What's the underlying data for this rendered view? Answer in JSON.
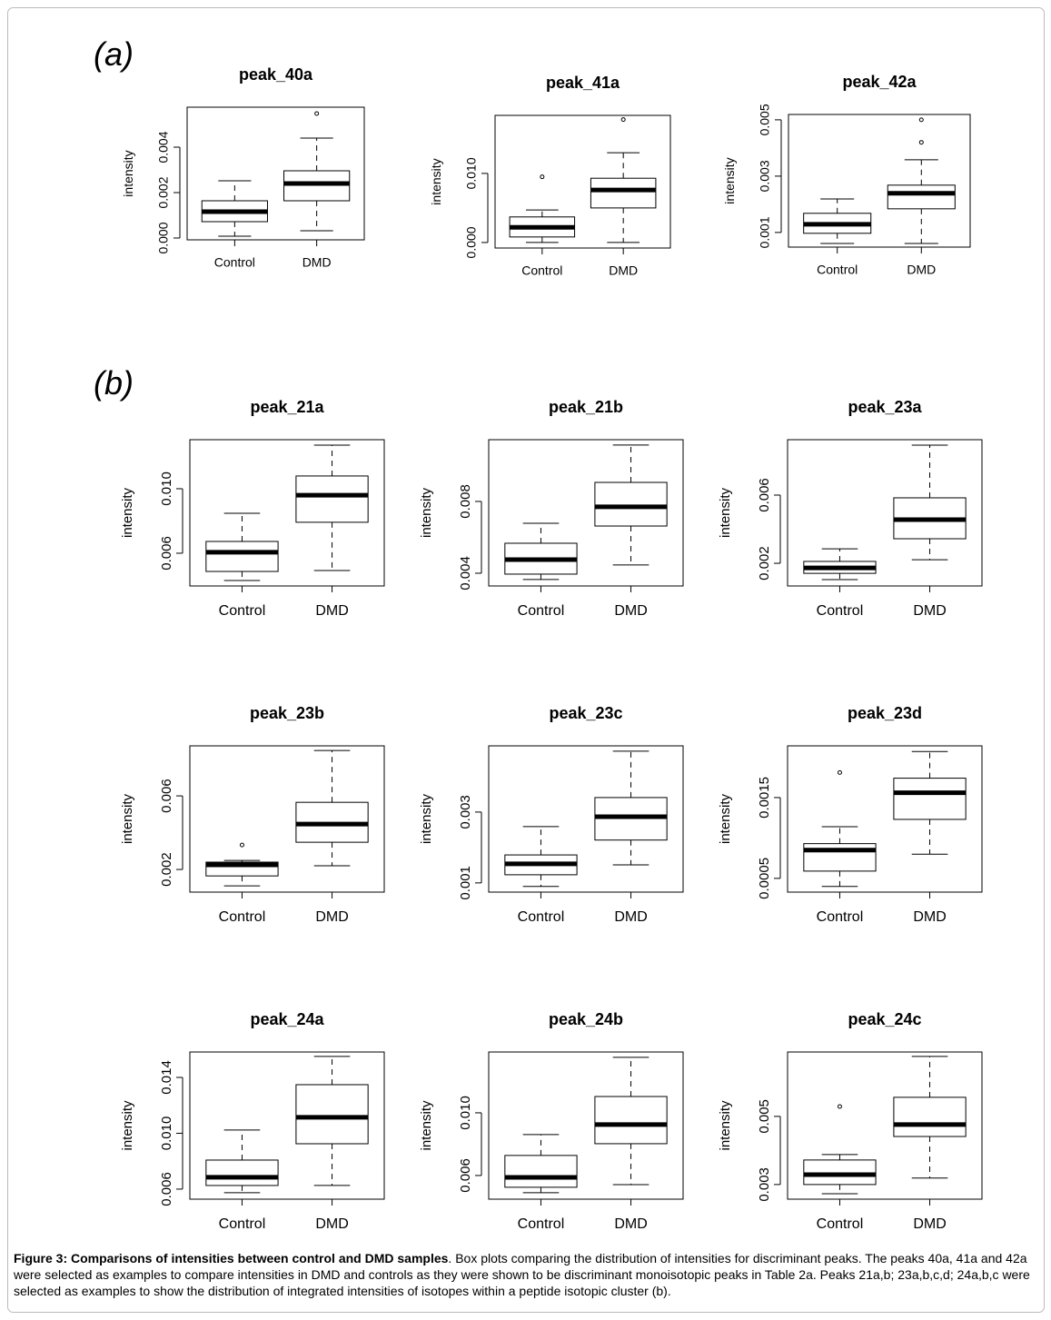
{
  "panel_labels": [
    "(a)",
    "(b)"
  ],
  "chart_data": [
    {
      "type": "box",
      "title": "peak_40a",
      "y_label": "intensity",
      "categories": [
        "Control",
        "DMD"
      ],
      "ylim": [
        -8e-05,
        0.00576
      ],
      "yticks": [
        {
          "value": 0,
          "label": "0.000"
        },
        0.002,
        0.004
      ],
      "boxes": [
        {
          "low": 8e-05,
          "q1": 0.00072,
          "median": 0.00116,
          "q3": 0.00164,
          "high": 0.00252,
          "outliers": []
        },
        {
          "low": 0.00032,
          "q1": 0.00164,
          "median": 0.0024,
          "q3": 0.00296,
          "high": 0.0044,
          "outliers": [
            0.00548
          ]
        }
      ]
    },
    {
      "type": "box",
      "title": "peak_41a",
      "y_label": "intensity",
      "categories": [
        "Control",
        "DMD"
      ],
      "ylim": [
        -0.0008,
        0.0184
      ],
      "yticks": [
        {
          "value": 0,
          "label": "0.000"
        },
        {
          "value": 0.01,
          "label": "0.010"
        }
      ],
      "boxes": [
        {
          "low": 0,
          "q1": 0.0008,
          "median": 0.0022,
          "q3": 0.0037,
          "high": 0.0047,
          "outliers": [
            0.0095
          ]
        },
        {
          "low": 0,
          "q1": 0.005,
          "median": 0.0076,
          "q3": 0.0093,
          "high": 0.013,
          "outliers": [
            0.0178
          ]
        }
      ]
    },
    {
      "type": "box",
      "title": "peak_42a",
      "y_label": "intensity",
      "categories": [
        "Control",
        "DMD"
      ],
      "ylim": [
        0.00048,
        0.00519
      ],
      "yticks": [
        0.001,
        0.003,
        0.005
      ],
      "boxes": [
        {
          "low": 0.00061,
          "q1": 0.00097,
          "median": 0.00129,
          "q3": 0.00168,
          "high": 0.00219,
          "outliers": []
        },
        {
          "low": 0.00061,
          "q1": 0.00184,
          "median": 0.00239,
          "q3": 0.00268,
          "high": 0.00358,
          "outliers": [
            0.0042,
            0.005
          ]
        }
      ]
    },
    {
      "type": "box",
      "title": "peak_21a",
      "y_label": "intensity",
      "categories": [
        "Control",
        "DMD"
      ],
      "ylim": [
        0.00397,
        0.01304
      ],
      "yticks": [
        0.006,
        {
          "value": 0.01,
          "label": "0.010"
        }
      ],
      "boxes": [
        {
          "low": 0.00431,
          "q1": 0.00487,
          "median": 0.00606,
          "q3": 0.00673,
          "high": 0.00848,
          "outliers": []
        },
        {
          "low": 0.00493,
          "q1": 0.00792,
          "median": 0.0096,
          "q3": 0.01079,
          "high": 0.0127,
          "outliers": []
        }
      ]
    },
    {
      "type": "box",
      "title": "peak_21b",
      "y_label": "intensity",
      "categories": [
        "Control",
        "DMD"
      ],
      "ylim": [
        0.00329,
        0.01144
      ],
      "yticks": [
        0.004,
        0.008
      ],
      "boxes": [
        {
          "low": 0.00365,
          "q1": 0.00395,
          "median": 0.00476,
          "q3": 0.00567,
          "high": 0.00678,
          "outliers": []
        },
        {
          "low": 0.00446,
          "q1": 0.00663,
          "median": 0.0077,
          "q3": 0.00906,
          "high": 0.01114,
          "outliers": []
        }
      ]
    },
    {
      "type": "box",
      "title": "peak_23a",
      "y_label": "intensity",
      "categories": [
        "Control",
        "DMD"
      ],
      "ylim": [
        0.00067,
        0.00925
      ],
      "yticks": [
        0.002,
        0.006
      ],
      "boxes": [
        {
          "low": 0.00104,
          "q1": 0.00141,
          "median": 0.00173,
          "q3": 0.00211,
          "high": 0.00285,
          "outliers": []
        },
        {
          "low": 0.00221,
          "q1": 0.00344,
          "median": 0.00456,
          "q3": 0.00584,
          "high": 0.00893,
          "outliers": []
        }
      ]
    },
    {
      "type": "box",
      "title": "peak_23b",
      "y_label": "intensity",
      "categories": [
        "Control",
        "DMD"
      ],
      "ylim": [
        0.00077,
        0.00872
      ],
      "yticks": [
        0.002,
        0.006
      ],
      "boxes": [
        {
          "low": 0.00111,
          "q1": 0.00165,
          "median": 0.00225,
          "q3": 0.0024,
          "high": 0.00249,
          "outliers": [
            0.00333
          ]
        },
        {
          "low": 0.0022,
          "q1": 0.00348,
          "median": 0.00447,
          "q3": 0.00565,
          "high": 0.00847,
          "outliers": []
        }
      ]
    },
    {
      "type": "box",
      "title": "peak_23c",
      "y_label": "intensity",
      "categories": [
        "Control",
        "DMD"
      ],
      "ylim": [
        0.00074,
        0.00487
      ],
      "yticks": [
        0.001,
        0.003
      ],
      "boxes": [
        {
          "low": 0.0009,
          "q1": 0.00123,
          "median": 0.00154,
          "q3": 0.00179,
          "high": 0.00259,
          "outliers": []
        },
        {
          "low": 0.00151,
          "q1": 0.00221,
          "median": 0.00287,
          "q3": 0.00341,
          "high": 0.00472,
          "outliers": []
        }
      ]
    },
    {
      "type": "box",
      "title": "peak_23d",
      "y_label": "intensity",
      "categories": [
        "Control",
        "DMD"
      ],
      "ylim": [
        0.00033,
        0.00214
      ],
      "yticks": [
        0.0005,
        0.0015
      ],
      "boxes": [
        {
          "low": 0.0004,
          "q1": 0.00059,
          "median": 0.00085,
          "q3": 0.00093,
          "high": 0.00114,
          "outliers": [
            0.00181
          ]
        },
        {
          "low": 0.0008,
          "q1": 0.00123,
          "median": 0.00156,
          "q3": 0.00174,
          "high": 0.00207,
          "outliers": []
        }
      ]
    },
    {
      "type": "box",
      "title": "peak_24a",
      "y_label": "intensity",
      "categories": [
        "Control",
        "DMD"
      ],
      "ylim": [
        0.00528,
        0.01582
      ],
      "yticks": [
        0.006,
        {
          "value": 0.01,
          "label": "0.010"
        },
        0.014
      ],
      "boxes": [
        {
          "low": 0.00574,
          "q1": 0.00626,
          "median": 0.00685,
          "q3": 0.00808,
          "high": 0.01023,
          "outliers": []
        },
        {
          "low": 0.00626,
          "q1": 0.00925,
          "median": 0.01114,
          "q3": 0.01348,
          "high": 0.0155,
          "outliers": []
        }
      ]
    },
    {
      "type": "box",
      "title": "peak_24b",
      "y_label": "intensity",
      "categories": [
        "Control",
        "DMD"
      ],
      "ylim": [
        0.00449,
        0.01388
      ],
      "yticks": [
        0.006,
        {
          "value": 0.01,
          "label": "0.010"
        }
      ],
      "boxes": [
        {
          "low": 0.0049,
          "q1": 0.00525,
          "median": 0.00588,
          "q3": 0.00728,
          "high": 0.00861,
          "outliers": []
        },
        {
          "low": 0.00542,
          "q1": 0.00803,
          "median": 0.00925,
          "q3": 0.01104,
          "high": 0.01354,
          "outliers": []
        }
      ]
    },
    {
      "type": "box",
      "title": "peak_24c",
      "y_label": "intensity",
      "categories": [
        "Control",
        "DMD"
      ],
      "ylim": [
        0.00257,
        0.00689
      ],
      "yticks": [
        0.003,
        0.005
      ],
      "boxes": [
        {
          "low": 0.00273,
          "q1": 0.003,
          "median": 0.00329,
          "q3": 0.00372,
          "high": 0.00388,
          "outliers": [
            0.00529
          ]
        },
        {
          "low": 0.00319,
          "q1": 0.00441,
          "median": 0.00476,
          "q3": 0.00556,
          "high": 0.00676,
          "outliers": []
        }
      ]
    }
  ],
  "caption": {
    "label": "Figure 3: Comparisons of intensities between control and DMD samples",
    "text": ". Box plots comparing the distribution of intensities for discriminant peaks. The peaks 40a, 41a and 42a were selected as examples to compare intensities in DMD and controls as they were shown to be discriminant monoisotopic peaks in Table 2a. Peaks 21a,b; 23a,b,c,d; 24a,b,c were selected as examples to show the distribution of integrated intensities of isotopes within a peptide isotopic cluster (b)."
  }
}
